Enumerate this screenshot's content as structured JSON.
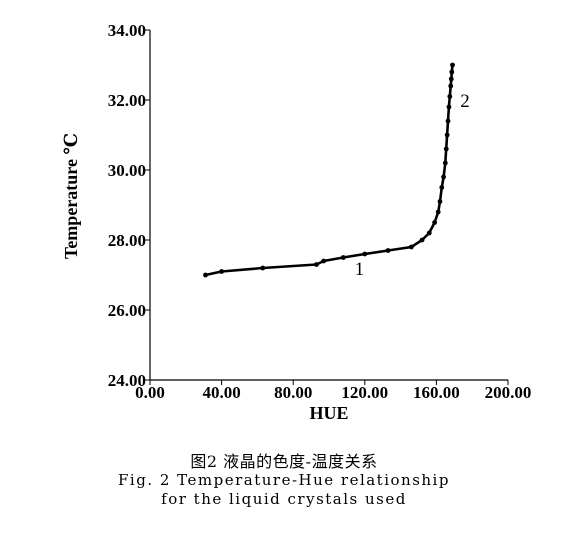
{
  "chart_data": {
    "type": "line",
    "xlabel": "HUE",
    "ylabel": "Temperature  ℃",
    "xlim": [
      0,
      200
    ],
    "ylim": [
      24,
      34
    ],
    "x_ticks": [
      "0.00",
      "40.00",
      "80.00",
      "120.00",
      "160.00",
      "200.00"
    ],
    "y_ticks": [
      "24.00",
      "26.00",
      "28.00",
      "30.00",
      "32.00",
      "34.00"
    ],
    "grid": false,
    "series": [
      {
        "x": [
          31,
          40,
          63,
          93,
          97,
          108,
          120,
          133,
          146,
          152,
          156,
          159,
          161,
          162,
          163,
          164,
          165,
          165.5,
          166,
          166.5,
          167,
          167.5,
          168,
          168.3,
          168.6,
          169
        ],
        "y": [
          27.0,
          27.1,
          27.2,
          27.3,
          27.4,
          27.5,
          27.6,
          27.7,
          27.8,
          28.0,
          28.2,
          28.5,
          28.8,
          29.1,
          29.5,
          29.8,
          30.2,
          30.6,
          31.0,
          31.4,
          31.8,
          32.1,
          32.4,
          32.6,
          32.8,
          33.0
        ]
      }
    ],
    "annotations": [
      {
        "text": "1",
        "x": 117,
        "y": 27.0
      },
      {
        "text": "2",
        "x": 176,
        "y": 31.8
      }
    ]
  },
  "caption": {
    "line1": "图2    液晶的色度-温度关系",
    "line2": "Fig. 2    Temperature-Hue relationship",
    "line3": "for the liquid crystals used"
  }
}
